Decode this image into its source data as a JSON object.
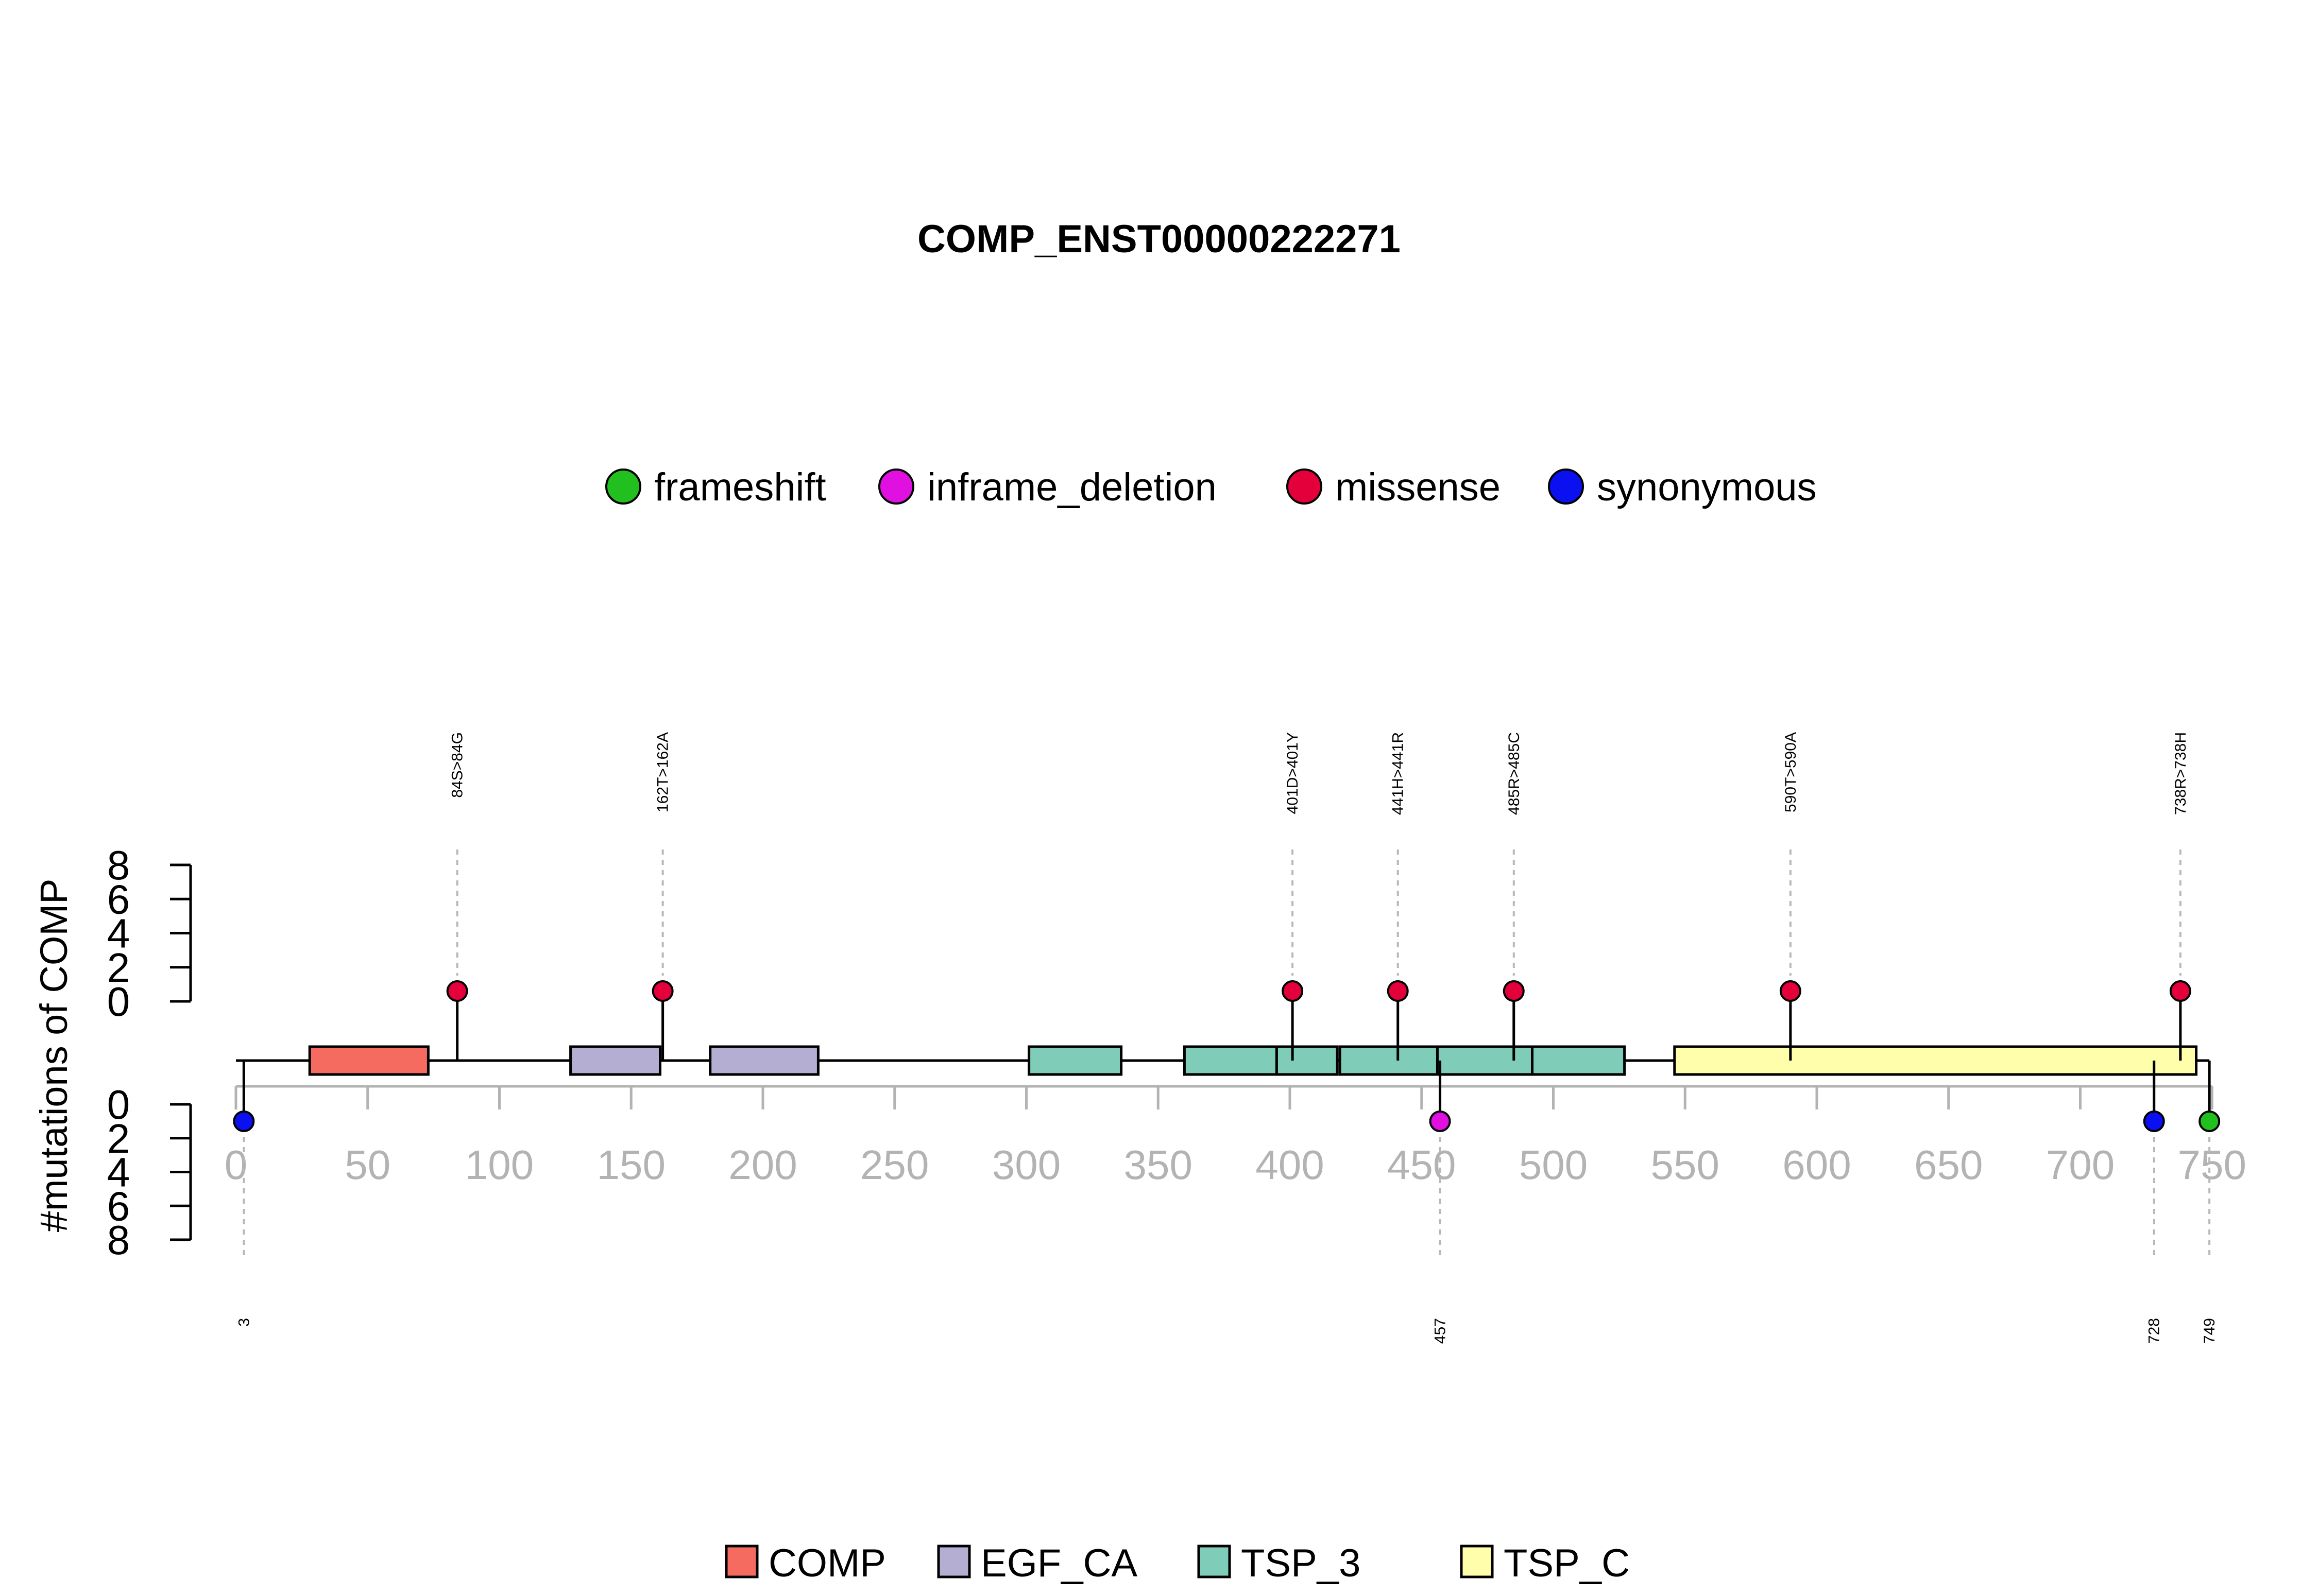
{
  "chart_data": {
    "type": "lollipop",
    "title": "COMP_ENST00000222271",
    "ylabel": "#mutations of COMP",
    "xlim": [
      0,
      750
    ],
    "x_ticks": [
      "0",
      "50",
      "100",
      "150",
      "200",
      "250",
      "300",
      "350",
      "400",
      "450",
      "500",
      "550",
      "600",
      "650",
      "700",
      "750"
    ],
    "y_ticks": [
      "0",
      "2",
      "4",
      "6",
      "8"
    ],
    "ylim": [
      0,
      8
    ],
    "mutation_types": [
      {
        "name": "frameshift",
        "color": "#22c01e"
      },
      {
        "name": "inframe_deletion",
        "color": "#e010e0"
      },
      {
        "name": "missense",
        "color": "#e4003a"
      },
      {
        "name": "synonymous",
        "color": "#0a10f0"
      }
    ],
    "top_mutations": [
      {
        "pos": 84,
        "count": 1,
        "type": "missense",
        "label": "84S>84G"
      },
      {
        "pos": 162,
        "count": 1,
        "type": "missense",
        "label": "162T>162A"
      },
      {
        "pos": 401,
        "count": 1,
        "type": "missense",
        "label": "401D>401Y"
      },
      {
        "pos": 441,
        "count": 1,
        "type": "missense",
        "label": "441H>441R"
      },
      {
        "pos": 485,
        "count": 1,
        "type": "missense",
        "label": "485R>485C"
      },
      {
        "pos": 590,
        "count": 1,
        "type": "missense",
        "label": "590T>590A"
      },
      {
        "pos": 738,
        "count": 1,
        "type": "missense",
        "label": "738R>738H"
      }
    ],
    "bottom_mutations": [
      {
        "pos": 3,
        "count": 1,
        "type": "synonymous",
        "label": "3"
      },
      {
        "pos": 457,
        "count": 1,
        "type": "inframe_deletion",
        "label": "457"
      },
      {
        "pos": 728,
        "count": 1,
        "type": "synonymous",
        "label": "728"
      },
      {
        "pos": 749,
        "count": 1,
        "type": "frameshift",
        "label": "749"
      }
    ],
    "domain_types": [
      {
        "name": "COMP",
        "color": "#f66b5f"
      },
      {
        "name": "EGF_CA",
        "color": "#b4aed2"
      },
      {
        "name": "TSP_3",
        "color": "#7fcdb9"
      },
      {
        "name": "TSP_C",
        "color": "#fefeab"
      }
    ],
    "domains": [
      {
        "name": "COMP",
        "start": 28,
        "end": 73
      },
      {
        "name": "EGF_CA",
        "start": 127,
        "end": 161
      },
      {
        "name": "EGF_CA",
        "start": 180,
        "end": 221
      },
      {
        "name": "TSP_3",
        "start": 301,
        "end": 336
      },
      {
        "name": "TSP_3",
        "start": 360,
        "end": 395
      },
      {
        "name": "TSP_3",
        "start": 395,
        "end": 418
      },
      {
        "name": "TSP_3",
        "start": 419,
        "end": 456
      },
      {
        "name": "TSP_3",
        "start": 456,
        "end": 492
      },
      {
        "name": "TSP_3",
        "start": 492,
        "end": 527
      },
      {
        "name": "TSP_C",
        "start": 546,
        "end": 744
      }
    ],
    "protein_length": 749
  }
}
